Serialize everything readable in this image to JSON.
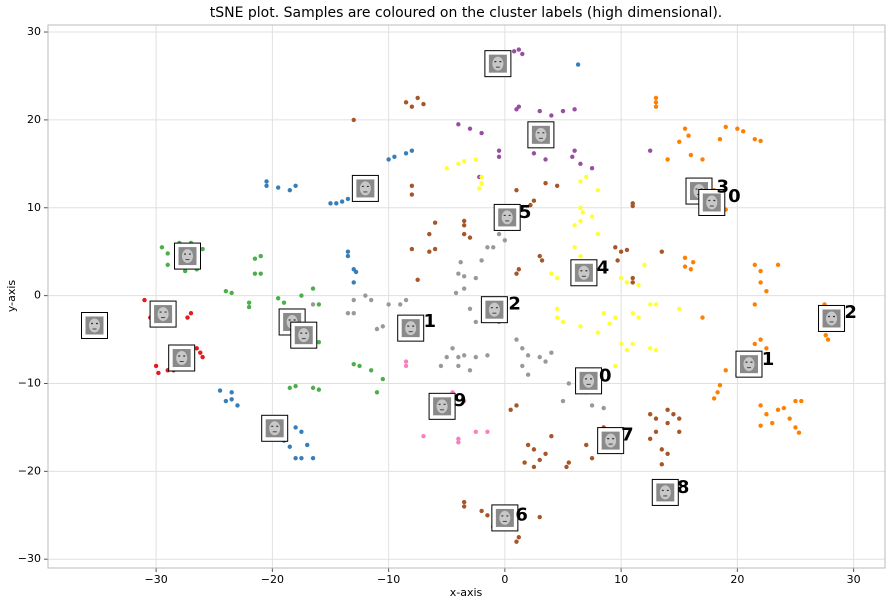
{
  "chart_data": {
    "type": "scatter",
    "title": "tSNE plot. Samples are coloured on the cluster labels (high dimensional).",
    "xlabel": "x-axis",
    "ylabel": "y-axis",
    "xlim": [
      -39.3,
      32.7
    ],
    "ylim": [
      -31,
      30.8
    ],
    "xticks": [
      {
        "value": -30,
        "label": "−30"
      },
      {
        "value": -20,
        "label": "−20"
      },
      {
        "value": -10,
        "label": "−10"
      },
      0,
      10,
      20,
      30
    ],
    "yticks": [
      {
        "value": -30,
        "label": "−30"
      },
      {
        "value": -20,
        "label": "−20"
      },
      {
        "value": -10,
        "label": "−10"
      },
      0,
      10,
      20,
      30
    ],
    "grid": true,
    "series": [
      {
        "color": "#984ea3",
        "x": [
          -0.8,
          -0.5,
          0.8,
          1.2,
          1.5,
          1,
          1.2,
          3,
          4,
          5,
          6,
          -4,
          -3,
          -2,
          -0.5,
          -0.5,
          3,
          2.5,
          3.5,
          6,
          6.5,
          7.5,
          5.8,
          3.5,
          12.5,
          -2.2
        ],
        "y": [
          25.5,
          26.5,
          27.8,
          28,
          27.5,
          21.2,
          21.5,
          21,
          20.5,
          21,
          21.2,
          19.5,
          19,
          18.5,
          16.5,
          15.8,
          17,
          16.2,
          15.5,
          16.5,
          15,
          14.5,
          15.8,
          19.5,
          16.5,
          13.5
        ]
      },
      {
        "color": "#ff7f00",
        "x": [
          13,
          13,
          13,
          15.5,
          15.8,
          15,
          19,
          20,
          20.5,
          18.5,
          21.5,
          22,
          14,
          16,
          17,
          18,
          19,
          18,
          15.5,
          15.5,
          16.2,
          16,
          17,
          21.5,
          22,
          23.5,
          22,
          22.5,
          21.5,
          22,
          21.5,
          22.5,
          19,
          18.5,
          18.3,
          18,
          20,
          22,
          22,
          23,
          22.5,
          23.5,
          24,
          25,
          25.5,
          24.5,
          25,
          25.3,
          27.5,
          27.6,
          27.8
        ],
        "y": [
          22.5,
          21.5,
          22,
          19,
          18.2,
          17.5,
          19.2,
          19,
          18.7,
          17.8,
          17.8,
          17.6,
          15.5,
          16,
          15.5,
          12,
          9.8,
          9.5,
          4.3,
          3.3,
          3.8,
          3,
          -2.5,
          3.5,
          2.8,
          3.5,
          1.5,
          0.5,
          -1,
          -5,
          -5.5,
          -6,
          -8.5,
          -10.2,
          -11,
          -11.7,
          -9,
          -12.5,
          -14.8,
          -14.5,
          -13.5,
          -13,
          -12.8,
          -12,
          -12,
          -14,
          -15,
          -15.6,
          -1,
          -4.5,
          -5
        ]
      },
      {
        "color": "#a65628",
        "x": [
          -8.5,
          -8,
          -7.5,
          -7,
          -13,
          -8,
          -8,
          -6,
          -6.5,
          -6,
          -6.5,
          -3.5,
          -3.5,
          -3.5,
          -3,
          -8,
          -7.5,
          1,
          3.5,
          2.5,
          2.2,
          4.5,
          11,
          11,
          1.2,
          1,
          3,
          3.2,
          9.5,
          10,
          10.5,
          9.7,
          13.5,
          11,
          11,
          0.5,
          1,
          2,
          2.5,
          3.5,
          3,
          1.7,
          2.5,
          4,
          5.5,
          5.3,
          7,
          7.5,
          8.5,
          8.5,
          12.5,
          13,
          13,
          14,
          14.5,
          15,
          14,
          15,
          13.5,
          14,
          12.5,
          -3.5,
          -3.5,
          -2,
          -1.5,
          3,
          1.2,
          1,
          -1,
          13.5
        ],
        "y": [
          22,
          21.5,
          22.5,
          21.8,
          20,
          12.5,
          11.5,
          8.3,
          7,
          5.3,
          5,
          8.5,
          8,
          7,
          6.6,
          5.3,
          1.8,
          12,
          12.8,
          10.8,
          10.3,
          12.5,
          10.5,
          10.2,
          3,
          2.5,
          4.5,
          4,
          5.5,
          5,
          5.2,
          4,
          5,
          2,
          1.5,
          -13,
          -12.5,
          -17,
          -17.5,
          -18,
          -18.7,
          -19,
          -19.5,
          -16,
          -19,
          -19.5,
          -17,
          -18.5,
          -15,
          -15.7,
          -16.3,
          -15.5,
          -14,
          -13,
          -13.5,
          -14,
          -14.5,
          -15.5,
          -17.5,
          -18,
          -13.5,
          -24,
          -23.5,
          -24.5,
          -25,
          -25.2,
          -27.5,
          -28,
          -26.3,
          -19.2
        ]
      },
      {
        "color": "#ffff33",
        "x": [
          -4,
          -3.5,
          -2.5,
          -5,
          -2.2,
          -2,
          -2,
          6.5,
          7,
          8,
          6.5,
          6.7,
          7.5,
          6.5,
          6,
          8,
          6,
          6.5,
          4,
          4.5,
          10,
          10.5,
          11.5,
          11,
          11.5,
          12.5,
          13,
          4.5,
          4.5,
          5,
          6.5,
          8.5,
          9.5,
          9,
          8,
          10,
          11,
          12.5,
          13,
          10.5,
          9.5,
          8,
          12,
          15
        ],
        "y": [
          15,
          15.3,
          15.5,
          14.5,
          12.2,
          12.8,
          13.5,
          13,
          13.5,
          12,
          10,
          9.5,
          9,
          8.5,
          8,
          7,
          5.5,
          4.5,
          2.5,
          2,
          2,
          1.5,
          1.2,
          -2,
          -2.5,
          -1,
          -1,
          -1.5,
          -2.5,
          -3,
          -3.5,
          -2,
          -2.5,
          -3.2,
          -4.2,
          -5.5,
          -5.5,
          -6,
          -6.2,
          -6.2,
          -8,
          -9,
          3.5,
          -1.5
        ]
      },
      {
        "color": "#999999",
        "x": [
          -1.5,
          -1,
          0,
          -0.5,
          -2,
          -3.8,
          -4,
          -3.5,
          -2.5,
          -3.5,
          -4.2,
          -3,
          -2.5,
          -12,
          -11.5,
          -13,
          -13.5,
          -13,
          -10,
          -9,
          -8.5,
          -11,
          -10.5,
          -16.5,
          -1,
          -0.5,
          -4.5,
          -5,
          -4,
          -3.5,
          -2.5,
          -1.5,
          -4,
          -3,
          -5.5,
          1,
          1.5,
          3,
          4,
          2,
          1.5,
          3.5,
          2,
          5.5,
          5,
          7,
          7.5,
          8.5
        ],
        "y": [
          5.5,
          5.5,
          6.3,
          7,
          4,
          3.8,
          2.5,
          2.2,
          2,
          0.8,
          0.3,
          -1.5,
          -3,
          0,
          -0.5,
          -0.5,
          -2,
          -2,
          -1,
          -1,
          -0.5,
          -3.8,
          -3.5,
          -1,
          -2,
          -3,
          -6,
          -7,
          -7,
          -6.8,
          -7,
          -6.8,
          -8,
          -8.5,
          -8,
          -5,
          -6,
          -7,
          -6.5,
          -6.8,
          -8,
          -7.5,
          -9,
          -10,
          -12,
          -11,
          -12.5,
          -12.8
        ]
      },
      {
        "color": "#377eb8",
        "x": [
          6.3,
          -10,
          -9.5,
          -8.5,
          -8,
          -20.5,
          -20.5,
          -19.5,
          -18.5,
          -18,
          -15,
          -14.5,
          -14,
          -13.5,
          -13.5,
          -13.5,
          -13,
          -12.8,
          -13,
          -24.5,
          -23.5,
          -23.5,
          -23,
          -24,
          -18,
          -17.5,
          -19,
          -18.5,
          -17,
          -17.5,
          -16.5,
          -18
        ],
        "y": [
          26.3,
          15.5,
          15.8,
          16.2,
          16.5,
          13,
          12.5,
          12.3,
          12,
          12.5,
          10.5,
          10.5,
          10.7,
          11,
          5,
          4.5,
          3,
          2.7,
          1.5,
          -10.8,
          -11,
          -11.8,
          -12.5,
          -12,
          -15,
          -15.5,
          -16.5,
          -17.2,
          -17,
          -18.5,
          -18.5,
          -18.5
        ]
      },
      {
        "color": "#4daf4a",
        "x": [
          -29.5,
          -28,
          -27,
          -26,
          -29,
          -27.5,
          -29,
          -27.5,
          -26.5,
          -24,
          -23.5,
          -22,
          -22,
          -21.5,
          -21,
          -21.5,
          -21,
          -19.5,
          -19,
          -17.5,
          -16.5,
          -16,
          -16,
          -18.5,
          -18,
          -16.5,
          -16,
          -13,
          -12.5,
          -11.5,
          -11,
          -10.5
        ],
        "y": [
          5.5,
          6,
          6,
          5.3,
          4.8,
          4,
          3.5,
          2.8,
          3,
          0.5,
          0.3,
          -0.8,
          -1.3,
          2.5,
          2.5,
          4.2,
          4.5,
          -0.3,
          -0.8,
          0,
          0.8,
          -1,
          -5.3,
          -10.5,
          -10.3,
          -10.5,
          -10.7,
          -7.8,
          -8,
          -8.5,
          -11,
          -9.5
        ]
      },
      {
        "color": "#e41a1c",
        "x": [
          -31,
          -30.5,
          -30.2,
          -27,
          -27.3,
          -30,
          -29.8,
          -29,
          -26.5,
          -26.2,
          -26,
          -28.5
        ],
        "y": [
          -0.5,
          -2.5,
          -1.5,
          -2,
          -2.5,
          -8,
          -8.8,
          -8.5,
          -6,
          -6.5,
          -7,
          -8.5
        ]
      },
      {
        "color": "#f781bf",
        "x": [
          -5.5,
          -3.5,
          -4.5,
          -7,
          -4,
          -4,
          -2.5,
          -1.5,
          -8.5,
          -8.5
        ],
        "y": [
          -11.5,
          -12,
          -11,
          -16,
          -16.3,
          -16.7,
          -15.5,
          -15.5,
          -7.5,
          -8
        ]
      }
    ],
    "thumbnails": {
      "x": [
        -0.6,
        3.1,
        -12,
        16.7,
        17.8,
        0.2,
        -27.3,
        6.8,
        -0.9,
        -29.4,
        -35.3,
        28.1,
        -18.3,
        -17.3,
        -8.1,
        -27.8,
        21,
        7.2,
        -5.4,
        -19.8,
        9.1,
        13.8,
        0
      ],
      "y": [
        26.4,
        18.3,
        12.2,
        11.9,
        10.6,
        8.9,
        4.5,
        2.6,
        -1.6,
        -2.1,
        -3.4,
        -2.6,
        -3,
        -4.5,
        -3.7,
        -7.1,
        -7.8,
        -9.7,
        -12.6,
        -15.1,
        -16.5,
        -22.4,
        -25.3
      ]
    },
    "annotations": [
      {
        "text": "3",
        "x": 18.2,
        "y": 12.3
      },
      {
        "text": "0",
        "x": 19.2,
        "y": 11.2
      },
      {
        "text": "5",
        "x": 1.2,
        "y": 9.4
      },
      {
        "text": "4",
        "x": 7.9,
        "y": 3.1
      },
      {
        "text": "2",
        "x": 0.3,
        "y": -1
      },
      {
        "text": "1",
        "x": -7,
        "y": -3
      },
      {
        "text": "2",
        "x": 29.2,
        "y": -2
      },
      {
        "text": "1",
        "x": 22.1,
        "y": -7.3
      },
      {
        "text": "0",
        "x": 8.1,
        "y": -9.2
      },
      {
        "text": "9",
        "x": -4.4,
        "y": -12
      },
      {
        "text": "7",
        "x": 10,
        "y": -15.9
      },
      {
        "text": "8",
        "x": 14.8,
        "y": -21.9
      },
      {
        "text": "6",
        "x": 0.9,
        "y": -25
      }
    ]
  }
}
